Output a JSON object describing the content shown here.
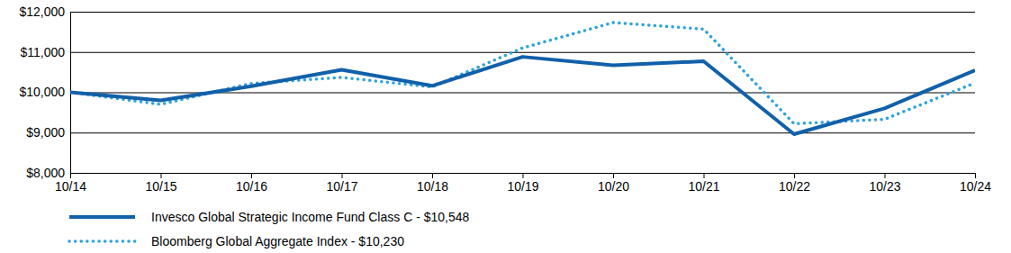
{
  "chart_data": {
    "type": "line",
    "categories": [
      "10/14",
      "10/15",
      "10/16",
      "10/17",
      "10/18",
      "10/19",
      "10/20",
      "10/21",
      "10/22",
      "10/23",
      "10/24"
    ],
    "series": [
      {
        "name": "Invesco Global Strategic Income Fund Class C - $10,548",
        "color": "#1160aa",
        "line_style": "solid",
        "values": [
          10000,
          9800,
          10150,
          10560,
          10160,
          10880,
          10670,
          10770,
          8960,
          9600,
          10548
        ]
      },
      {
        "name": "Bloomberg Global Aggregate Index - $10,230",
        "color": "#2ea3dc",
        "line_style": "dotted",
        "values": [
          10000,
          9700,
          10220,
          10370,
          10130,
          11100,
          11730,
          11570,
          9220,
          9330,
          10230
        ]
      }
    ],
    "ylim": [
      8000,
      12000
    ],
    "yticks": [
      {
        "value": 8000,
        "label": "$8,000"
      },
      {
        "value": 9000,
        "label": "$9,000"
      },
      {
        "value": 10000,
        "label": "$10,000"
      },
      {
        "value": 11000,
        "label": "$11,000"
      },
      {
        "value": 12000,
        "label": "$12,000"
      }
    ],
    "grid": true,
    "legend": "bottom"
  }
}
